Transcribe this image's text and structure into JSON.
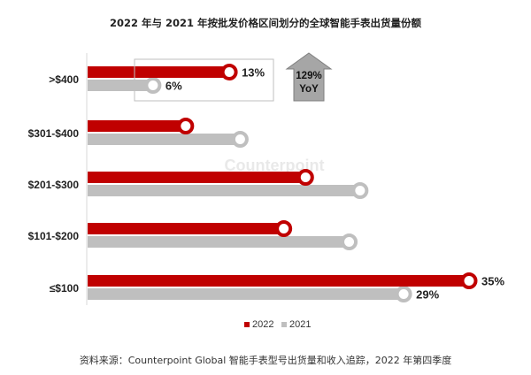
{
  "chart_data": {
    "type": "bar",
    "orientation": "horizontal",
    "title": "2022 年与 2021 年按批发价格区间划分的全球智能手表出货量份额",
    "categories": [
      ">$400",
      "$301-$400",
      "$201-$300",
      "$101-$200",
      "≤$100"
    ],
    "series": [
      {
        "name": "2022",
        "color": "#c00000",
        "values": [
          13,
          9,
          20,
          18,
          35
        ],
        "labels": [
          "13%",
          "",
          "",
          "",
          "35%"
        ]
      },
      {
        "name": "2021",
        "color": "#bfbfbf",
        "values": [
          6,
          14,
          25,
          24,
          29
        ],
        "labels": [
          "6%",
          "",
          "",
          "",
          "29%"
        ]
      }
    ],
    "xlim": [
      0,
      40
    ],
    "grid": false,
    "legend_position": "bottom",
    "callout": {
      "line1": "129%",
      "line2": "YoY"
    },
    "source": "资料来源：Counterpoint Global 智能手表型号出货量和收入追踪，2022 年第四季度",
    "watermark": "Counterpoint"
  }
}
